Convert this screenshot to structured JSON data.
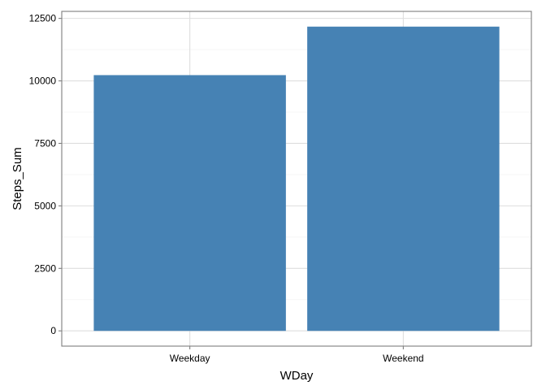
{
  "chart_data": {
    "type": "bar",
    "categories": [
      "Weekday",
      "Weekend"
    ],
    "values": [
      10230,
      12170
    ],
    "xlabel": "WDay",
    "ylabel": "Steps_Sum",
    "ylim": [
      -610,
      12780
    ],
    "yticks": [
      0,
      2500,
      5000,
      7500,
      10000,
      12500
    ],
    "ytick_labels": [
      "0",
      "2500",
      "5000",
      "7500",
      "10000",
      "12500"
    ],
    "grid": true,
    "bar_color": "#4682B4",
    "panel_border_color": "#7F7F7F",
    "grid_major_color": "#DEDEDE",
    "grid_minor_color": "#F0F0F0"
  }
}
